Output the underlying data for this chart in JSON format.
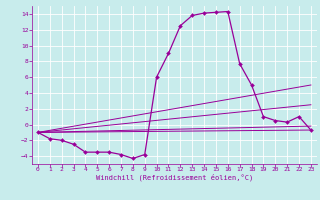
{
  "xlabel": "Windchill (Refroidissement éolien,°C)",
  "background_color": "#c8ecec",
  "line_color": "#990099",
  "xlim": [
    -0.5,
    23.5
  ],
  "ylim": [
    -5,
    15
  ],
  "yticks": [
    -4,
    -2,
    0,
    2,
    4,
    6,
    8,
    10,
    12,
    14
  ],
  "xticks": [
    0,
    1,
    2,
    3,
    4,
    5,
    6,
    7,
    8,
    9,
    10,
    11,
    12,
    13,
    14,
    15,
    16,
    17,
    18,
    19,
    20,
    21,
    22,
    23
  ],
  "curve": {
    "x": [
      0,
      1,
      2,
      3,
      4,
      5,
      6,
      7,
      8,
      9,
      10,
      11,
      12,
      13,
      14,
      15,
      16,
      17,
      18,
      19,
      20,
      21,
      22,
      23
    ],
    "y": [
      -1.0,
      -1.8,
      -2.0,
      -2.5,
      -3.5,
      -3.5,
      -3.5,
      -3.8,
      -4.3,
      -3.8,
      6.0,
      9.0,
      12.5,
      13.8,
      14.1,
      14.2,
      14.3,
      7.7,
      5.0,
      1.0,
      0.5,
      0.3,
      1.0,
      -0.7
    ]
  },
  "lines": [
    {
      "x": [
        0,
        23
      ],
      "y": [
        -1.0,
        5.0
      ]
    },
    {
      "x": [
        0,
        23
      ],
      "y": [
        -1.0,
        2.5
      ]
    },
    {
      "x": [
        0,
        23
      ],
      "y": [
        -1.0,
        -0.2
      ]
    },
    {
      "x": [
        0,
        23
      ],
      "y": [
        -1.0,
        -0.7
      ]
    }
  ]
}
